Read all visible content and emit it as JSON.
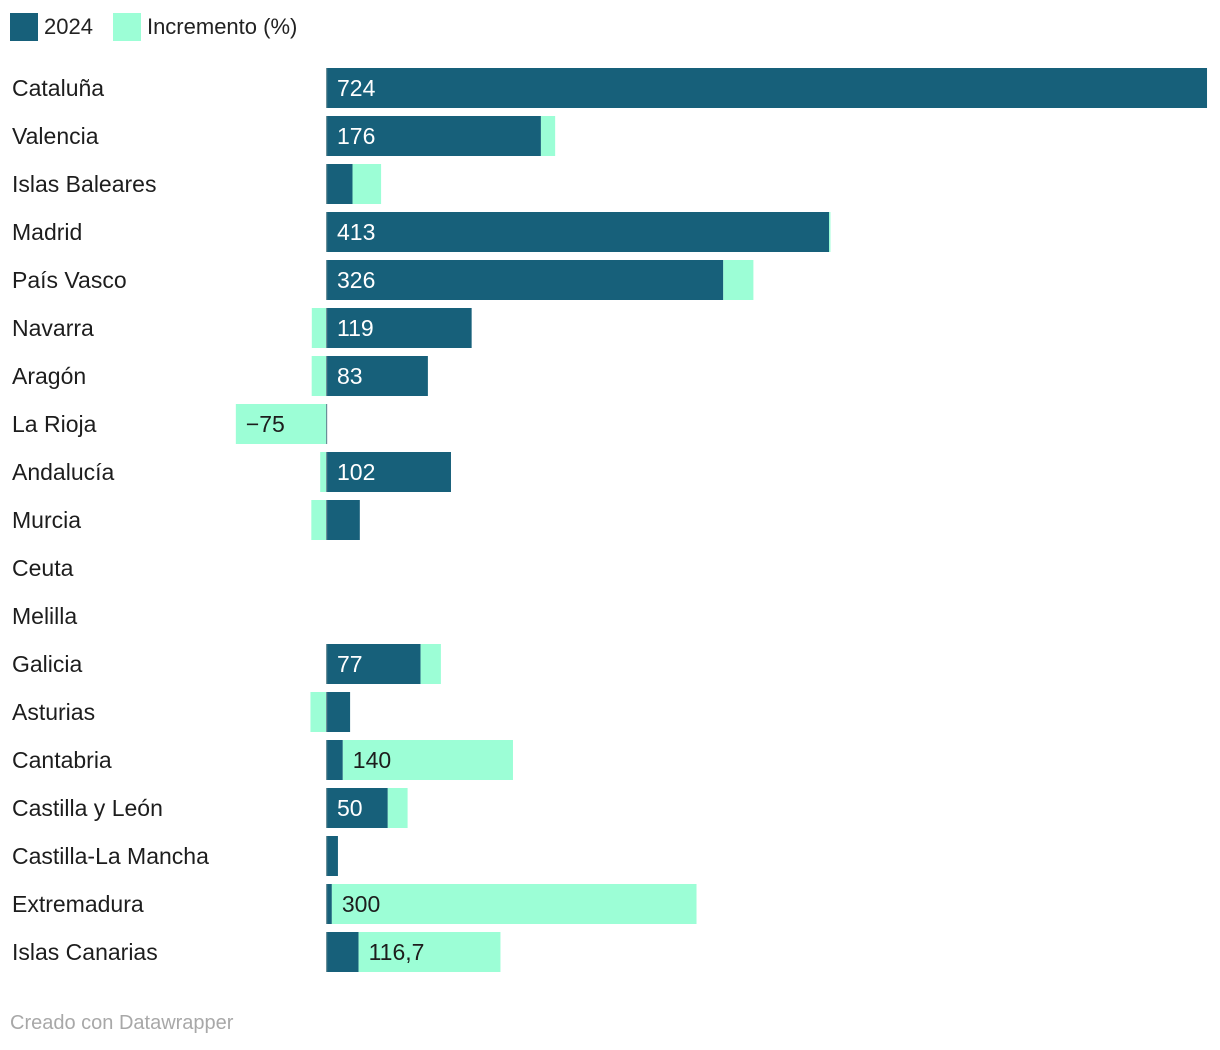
{
  "legend": [
    {
      "label": "2024",
      "color": "#17607a"
    },
    {
      "label": "Incremento (%)",
      "color": "#9cfed6"
    }
  ],
  "footer": {
    "source": "Creado con Datawrapper"
  },
  "chart_data": {
    "type": "bar",
    "orientation": "horizontal",
    "xlim": [
      -75,
      724
    ],
    "categories": [
      "Cataluña",
      "Valencia",
      "Islas Baleares",
      "Madrid",
      "País Vasco",
      "Navarra",
      "Aragón",
      "La Rioja",
      "Andalucía",
      "Murcia",
      "Ceuta",
      "Melilla",
      "Galicia",
      "Asturias",
      "Cantabria",
      "Castilla y León",
      "Castilla-La Mancha",
      "Extremadura",
      "Islas Canarias"
    ],
    "series": [
      {
        "name": "2024",
        "color": "#17607a",
        "values": [
          724,
          176,
          21,
          413,
          326,
          119,
          83,
          null,
          102,
          27,
          null,
          null,
          77,
          19,
          13,
          50,
          9,
          4,
          26
        ],
        "labels": [
          "724",
          "176",
          "",
          "413",
          "326",
          "119",
          "83",
          "",
          "102",
          "",
          "",
          "",
          "77",
          "",
          "",
          "50",
          "",
          "",
          ""
        ]
      },
      {
        "name": "Incremento (%)",
        "color": "#9cfed6",
        "values": [
          0,
          11.7,
          23.5,
          1.2,
          24.8,
          -12.5,
          -12.6,
          -75,
          -5.6,
          -12.9,
          null,
          null,
          16.7,
          -13.6,
          140,
          16.3,
          0,
          300,
          116.7
        ],
        "labels": [
          "",
          "",
          "",
          "",
          "",
          "",
          "",
          "−75",
          "",
          "",
          "",
          "",
          "",
          "",
          "140",
          "",
          "",
          "300",
          "116,7"
        ]
      }
    ]
  }
}
